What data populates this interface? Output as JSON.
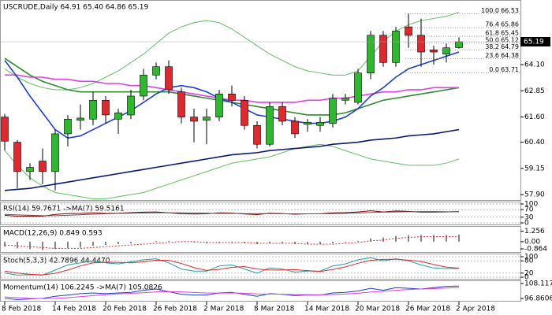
{
  "chart_data": [
    {
      "type": "candlestick",
      "title": "USCRUDE,Daily  64.91 65.40 64.86 65.19",
      "categories": [
        "8 Feb 2018",
        null,
        null,
        null,
        "14 Feb 2018",
        null,
        null,
        null,
        "20 Feb 2018",
        null,
        null,
        null,
        "26 Feb 2018",
        null,
        null,
        null,
        "2 Mar 2018",
        null,
        null,
        null,
        "8 Mar 2018",
        null,
        null,
        null,
        "14 Mar 2018",
        null,
        null,
        null,
        "20 Mar 2018",
        null,
        null,
        null,
        "26 Mar 2018",
        null,
        null,
        null,
        "2 Apr 2018"
      ],
      "open": [
        61.6,
        60.4,
        59.0,
        59.5,
        59.0,
        60.8,
        61.45,
        61.5,
        62.4,
        61.5,
        61.7,
        62.6,
        63.6,
        64.0,
        62.8,
        61.6,
        61.45,
        61.6,
        62.7,
        62.4,
        61.2,
        60.3,
        62.1,
        61.4,
        61.25,
        61.2,
        61.3,
        62.4,
        62.3,
        63.7,
        65.5,
        64.2,
        65.9,
        65.5,
        64.8,
        64.6,
        64.91
      ],
      "high": [
        61.75,
        60.5,
        59.4,
        60.1,
        61.0,
        61.7,
        62.2,
        62.8,
        62.6,
        62.0,
        62.9,
        63.9,
        64.2,
        64.3,
        63.0,
        62.0,
        62.0,
        62.9,
        63.1,
        62.6,
        61.4,
        62.3,
        62.3,
        61.6,
        61.5,
        61.6,
        62.7,
        62.7,
        63.9,
        65.7,
        65.7,
        65.9,
        66.53,
        66.3,
        65.0,
        65.1,
        65.4
      ],
      "low": [
        60.0,
        58.2,
        58.6,
        58.4,
        58.1,
        60.2,
        61.0,
        61.2,
        61.3,
        60.8,
        61.5,
        62.4,
        63.4,
        62.7,
        61.3,
        60.4,
        60.3,
        61.4,
        62.1,
        61.0,
        60.1,
        60.2,
        61.2,
        60.6,
        60.9,
        60.9,
        61.1,
        62.2,
        62.2,
        63.4,
        64.0,
        64.0,
        64.9,
        64.0,
        64.1,
        64.2,
        64.86
      ],
      "close": [
        60.45,
        59.0,
        59.2,
        59.0,
        60.8,
        61.5,
        61.55,
        62.4,
        61.7,
        61.8,
        62.6,
        63.6,
        64.0,
        62.9,
        61.6,
        61.4,
        61.6,
        62.7,
        62.4,
        61.2,
        60.3,
        62.1,
        61.4,
        60.8,
        61.35,
        61.35,
        62.5,
        62.5,
        63.7,
        65.5,
        64.2,
        65.7,
        65.5,
        64.7,
        64.7,
        64.9,
        65.19
      ],
      "up_color": "#2eb82e",
      "down_color": "#e0282e",
      "series": [
        {
          "color": "#5fbf5f",
          "values": [
            63.9,
            63.5,
            63.2,
            63.0,
            62.9,
            62.9,
            63.0,
            63.2,
            63.5,
            63.8,
            64.2,
            64.6,
            65.1,
            65.6,
            65.9,
            66.1,
            66.2,
            66.1,
            65.8,
            65.4,
            65.0,
            64.6,
            64.3,
            64.0,
            63.8,
            63.7,
            63.6,
            63.6,
            63.8,
            64.5,
            65.2,
            65.7,
            66.0,
            66.2,
            66.3,
            66.4,
            66.6
          ]
        },
        {
          "color": "#5fbf5f",
          "values": [
            60.0,
            59.3,
            58.7,
            58.3,
            58.0,
            57.9,
            57.8,
            57.7,
            57.7,
            57.8,
            57.9,
            58.0,
            58.2,
            58.4,
            58.6,
            58.8,
            59.0,
            59.2,
            59.4,
            59.5,
            59.6,
            59.7,
            59.9,
            60.1,
            60.2,
            60.3,
            60.2,
            60.0,
            59.8,
            59.6,
            59.5,
            59.4,
            59.3,
            59.3,
            59.3,
            59.4,
            59.6
          ]
        },
        {
          "color": "#2e8b2e",
          "values": [
            64.4,
            64.0,
            63.6,
            63.3,
            63.1,
            62.9,
            62.8,
            62.8,
            62.8,
            62.8,
            62.8,
            62.8,
            62.8,
            62.8,
            62.7,
            62.6,
            62.5,
            62.4,
            62.3,
            62.2,
            62.1,
            62.0,
            61.9,
            61.8,
            61.7,
            61.7,
            61.7,
            61.8,
            62.0,
            62.2,
            62.4,
            62.5,
            62.6,
            62.7,
            62.8,
            62.9,
            63.0
          ]
        },
        {
          "color": "#e040e0",
          "values": [
            63.6,
            63.6,
            63.5,
            63.5,
            63.4,
            63.4,
            63.3,
            63.3,
            63.2,
            63.2,
            63.1,
            63.1,
            63.0,
            62.9,
            62.8,
            62.7,
            62.6,
            62.5,
            62.4,
            62.4,
            62.3,
            62.3,
            62.3,
            62.3,
            62.4,
            62.4,
            62.5,
            62.5,
            62.6,
            62.7,
            62.8,
            62.8,
            62.9,
            62.9,
            63.0,
            63.0,
            63.0
          ]
        },
        {
          "color": "#1a3fd6",
          "values": [
            64.3,
            63.5,
            62.6,
            61.8,
            61.0,
            60.6,
            60.7,
            61.0,
            61.3,
            61.6,
            61.9,
            62.3,
            62.7,
            63.0,
            63.1,
            63.0,
            62.8,
            62.5,
            62.3,
            62.0,
            61.7,
            61.6,
            61.5,
            61.4,
            61.3,
            61.3,
            61.4,
            61.6,
            62.0,
            62.6,
            63.0,
            63.5,
            63.9,
            64.1,
            64.3,
            64.5,
            64.7
          ]
        },
        {
          "color": "#0a1a6e",
          "values": [
            58.1,
            58.15,
            58.2,
            58.3,
            58.4,
            58.5,
            58.6,
            58.7,
            58.8,
            58.9,
            59.0,
            59.1,
            59.2,
            59.3,
            59.4,
            59.5,
            59.6,
            59.7,
            59.8,
            59.85,
            59.9,
            60.0,
            60.05,
            60.1,
            60.15,
            60.2,
            60.3,
            60.35,
            60.4,
            60.5,
            60.55,
            60.6,
            60.7,
            60.75,
            60.8,
            60.9,
            61.0
          ]
        }
      ],
      "fibonacci": [
        {
          "level": "100.0",
          "price": 66.53
        },
        {
          "level": "76.4",
          "price": 65.86
        },
        {
          "level": "61.8",
          "price": 65.45
        },
        {
          "level": "50.0",
          "price": 65.12
        },
        {
          "level": "38.2",
          "price": 64.79
        },
        {
          "level": "23.6",
          "price": 64.38
        },
        {
          "level": "0.0",
          "price": 63.71
        }
      ],
      "ylim": [
        57.68,
        67.03
      ],
      "yticks": [
        {
          "value": 57.9,
          "label": "57.90"
        },
        59.15,
        {
          "value": 60.4,
          "label": "60.40"
        },
        {
          "value": 61.6,
          "label": "61.60"
        },
        62.85,
        {
          "value": 64.1,
          "label": "64.10"
        }
      ]
    },
    {
      "type": "line",
      "title": "RSI(14) 59.7671 ->MA(7) 59.5161",
      "series": [
        {
          "color": "#8b0000",
          "values": [
            40,
            35,
            36,
            35,
            45,
            49,
            50,
            53,
            50,
            51,
            54,
            57,
            58,
            53,
            48,
            47,
            48,
            53,
            52,
            47,
            44,
            51,
            49,
            46,
            48,
            48,
            53,
            54,
            58,
            64,
            58,
            63,
            61,
            57,
            57,
            58,
            59.7671
          ]
        },
        {
          "color": "#555555",
          "values": [
            45,
            42,
            40,
            38,
            38,
            40,
            43,
            46,
            48,
            50,
            51,
            52,
            53,
            53,
            53,
            52,
            51,
            50,
            50,
            49,
            49,
            49,
            48,
            48,
            48,
            48,
            49,
            50,
            52,
            55,
            57,
            58,
            59,
            60,
            60,
            59,
            59.5161
          ]
        }
      ],
      "ylim": [
        0,
        100
      ],
      "yticks": [
        100,
        70,
        30,
        0
      ],
      "grid": true
    },
    {
      "type": "macd",
      "title": "MACD(12,26,9) 0.849 0.593",
      "values": [
        -0.6,
        -0.8,
        -0.9,
        -1.0,
        -0.9,
        -0.8,
        -0.7,
        -0.5,
        -0.4,
        -0.3,
        -0.2,
        0,
        0.1,
        0.1,
        0,
        -0.1,
        -0.2,
        -0.1,
        -0.1,
        -0.2,
        -0.3,
        -0.2,
        -0.2,
        -0.3,
        -0.3,
        -0.3,
        -0.2,
        -0.1,
        0.1,
        0.4,
        0.5,
        0.7,
        0.8,
        0.8,
        0.8,
        0.8,
        0.849
      ],
      "color": "#888888",
      "series": [
        {
          "color": "#e0282e",
          "values": [
            -0.4,
            -0.5,
            -0.6,
            -0.7,
            -0.8,
            -0.8,
            -0.8,
            -0.7,
            -0.6,
            -0.5,
            -0.4,
            -0.3,
            -0.2,
            -0.1,
            0,
            0,
            -0.1,
            -0.1,
            -0.1,
            -0.1,
            -0.2,
            -0.2,
            -0.2,
            -0.2,
            -0.3,
            -0.3,
            -0.3,
            -0.2,
            -0.1,
            0.1,
            0.2,
            0.4,
            0.5,
            0.6,
            0.6,
            0.6,
            0.593
          ]
        }
      ],
      "ylim": [
        -1.05,
        1.5
      ],
      "yticks": [
        1.256,
        {
          "value": 0,
          "label": "0.00"
        },
        -0.864
      ]
    },
    {
      "type": "line",
      "title": "Stoch(5,3,3) 42.7896 44.4470",
      "series": [
        {
          "color": "#20a0a0",
          "values": [
            20,
            10,
            12,
            10,
            35,
            60,
            70,
            80,
            70,
            65,
            75,
            85,
            90,
            70,
            40,
            30,
            30,
            55,
            60,
            40,
            20,
            45,
            40,
            25,
            30,
            30,
            55,
            65,
            85,
            95,
            80,
            90,
            80,
            60,
            45,
            42,
            42.7896
          ]
        },
        {
          "color": "#e0282e",
          "values": [
            30,
            20,
            14,
            11,
            19,
            35,
            55,
            70,
            73,
            72,
            70,
            75,
            83,
            82,
            67,
            47,
            33,
            38,
            48,
            52,
            40,
            35,
            35,
            37,
            32,
            28,
            38,
            50,
            68,
            82,
            87,
            88,
            83,
            77,
            62,
            49,
            44.447
          ]
        }
      ],
      "ylim": [
        0,
        100
      ],
      "yticks": [
        100,
        80,
        20,
        0
      ],
      "grid": true
    },
    {
      "type": "line",
      "title": "Momentum(14) 106.2245 ->MA(7) 105.0826",
      "series": [
        {
          "color": "#1a3fd6",
          "values": [
            97,
            96,
            96.5,
            97,
            98.5,
            99.5,
            100.5,
            101,
            100.5,
            101,
            101.5,
            103,
            104,
            102,
            100,
            99.5,
            99.5,
            101,
            101.5,
            100,
            98.5,
            100.5,
            100,
            99,
            99.5,
            99.5,
            101,
            101.5,
            102.5,
            104.5,
            103,
            105,
            104.5,
            104,
            105,
            106,
            106.2245
          ]
        },
        {
          "color": "#e040e0",
          "values": [
            98,
            97.5,
            97,
            96.8,
            97,
            97.5,
            98.2,
            99,
            99.8,
            100.3,
            100.7,
            101.2,
            101.8,
            102,
            101.8,
            101.4,
            101,
            100.9,
            101,
            100.8,
            100.3,
            100.2,
            100.1,
            99.8,
            99.7,
            99.6,
            99.9,
            100.2,
            100.8,
            101.7,
            102.3,
            103,
            103.6,
            104,
            104.3,
            104.7,
            105.0826
          ]
        }
      ],
      "ylim": [
        96.3,
        108.7
      ],
      "yticks": [
        108.1174,
        96.8606
      ]
    }
  ]
}
